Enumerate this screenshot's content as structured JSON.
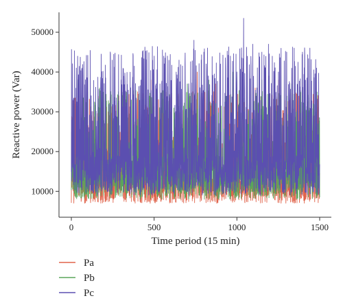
{
  "chart_data": {
    "type": "line",
    "xlabel": "Time period (15 min)",
    "ylabel": "Reactive power (Var)",
    "xlim": [
      0,
      1500
    ],
    "ylim": [
      3500,
      55000
    ],
    "x_ticks": [
      0,
      500,
      1000,
      1500
    ],
    "y_ticks": [
      10000,
      20000,
      30000,
      40000,
      50000
    ],
    "grid": false,
    "legend_position": "bottom-left",
    "n_points": 1500,
    "series": [
      {
        "name": "Pa",
        "color": "#e0634a",
        "stats": {
          "min": 5000,
          "max": 41000,
          "typical_low": 7000,
          "typical_high": 28000
        },
        "peaks": [
          [
            55,
            33000
          ],
          [
            180,
            38000
          ],
          [
            300,
            36000
          ],
          [
            480,
            38000
          ],
          [
            600,
            30000
          ],
          [
            760,
            40000
          ],
          [
            870,
            37000
          ],
          [
            1030,
            41000
          ],
          [
            1110,
            36000
          ],
          [
            1250,
            38000
          ],
          [
            1400,
            30000
          ],
          [
            1470,
            29000
          ]
        ]
      },
      {
        "name": "Pb",
        "color": "#5aa55a",
        "stats": {
          "min": 5000,
          "max": 40000,
          "typical_low": 8000,
          "typical_high": 30000
        },
        "peaks": [
          [
            40,
            38000
          ],
          [
            170,
            36000
          ],
          [
            330,
            33000
          ],
          [
            520,
            34000
          ],
          [
            700,
            37000
          ],
          [
            830,
            38000
          ],
          [
            975,
            40000
          ],
          [
            1150,
            38000
          ],
          [
            1330,
            37000
          ],
          [
            1460,
            32000
          ]
        ]
      },
      {
        "name": "Pc",
        "color": "#5b4fb0",
        "stats": {
          "min": 5000,
          "max": 53500,
          "typical_low": 9000,
          "typical_high": 38000
        },
        "peaks": [
          [
            30,
            41000
          ],
          [
            65,
            41000
          ],
          [
            180,
            44500
          ],
          [
            300,
            38000
          ],
          [
            420,
            38000
          ],
          [
            500,
            44000
          ],
          [
            580,
            44000
          ],
          [
            650,
            43000
          ],
          [
            740,
            48000
          ],
          [
            800,
            45000
          ],
          [
            900,
            42000
          ],
          [
            960,
            44000
          ],
          [
            1040,
            53500
          ],
          [
            1095,
            47000
          ],
          [
            1150,
            45000
          ],
          [
            1190,
            47000
          ],
          [
            1250,
            40000
          ],
          [
            1300,
            45000
          ],
          [
            1345,
            46000
          ],
          [
            1395,
            45000
          ],
          [
            1440,
            46000
          ],
          [
            1480,
            41000
          ]
        ]
      }
    ]
  }
}
